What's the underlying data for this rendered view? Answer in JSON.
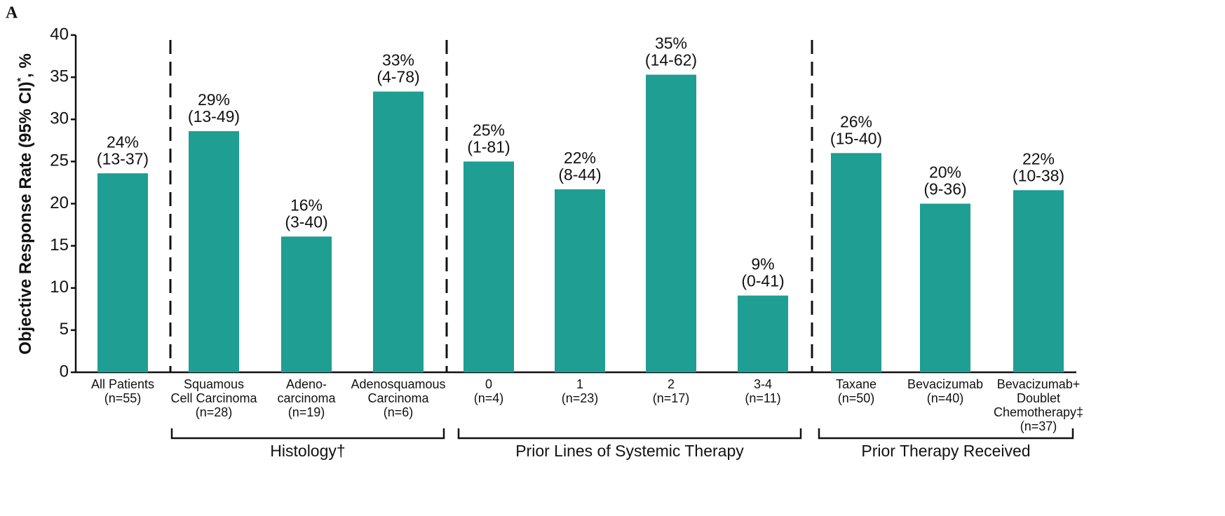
{
  "panel_label": "A",
  "chart_data": {
    "type": "bar",
    "ylabel": "Objective Response Rate (95% CI)",
    "ylabel_superscript": "*",
    "ylabel_suffix": ", %",
    "categories": [
      [
        "All Patients",
        "(n=55)"
      ],
      [
        "Squamous",
        "Cell Carcinoma",
        "(n=28)"
      ],
      [
        "Adeno-",
        "carcinoma",
        "(n=19)"
      ],
      [
        "Adenosquamous",
        "Carcinoma",
        "(n=6)"
      ],
      [
        "0",
        "(n=4)"
      ],
      [
        "1",
        "(n=23)"
      ],
      [
        "2",
        "(n=17)"
      ],
      [
        "3-4",
        "(n=11)"
      ],
      [
        "Taxane",
        "(n=50)"
      ],
      [
        "Bevacizumab",
        "(n=40)"
      ],
      [
        "Bevacizumab+",
        "Doublet",
        "Chemotherapy‡",
        "(n=37)"
      ]
    ],
    "values": [
      23.6,
      28.6,
      16.1,
      33.3,
      25,
      21.7,
      35.3,
      9.1,
      26,
      20,
      21.6
    ],
    "value_labels": [
      "24%",
      "29%",
      "16%",
      "33%",
      "25%",
      "22%",
      "35%",
      "9%",
      "26%",
      "20%",
      "22%"
    ],
    "ci_labels": [
      "(13-37)",
      "(13-49)",
      "(3-40)",
      "(4-78)",
      "(1-81)",
      "(8-44)",
      "(14-62)",
      "(0-41)",
      "(15-40)",
      "(9-36)",
      "(10-38)"
    ],
    "group_labels": [
      "Histology†",
      "Prior Lines of Systemic Therapy",
      "Prior Therapy Received"
    ],
    "color": "#1f9e93",
    "ylim": [
      0,
      40
    ],
    "yticks": [
      0,
      5,
      10,
      15,
      20,
      25,
      30,
      35,
      40
    ],
    "grid": false
  }
}
